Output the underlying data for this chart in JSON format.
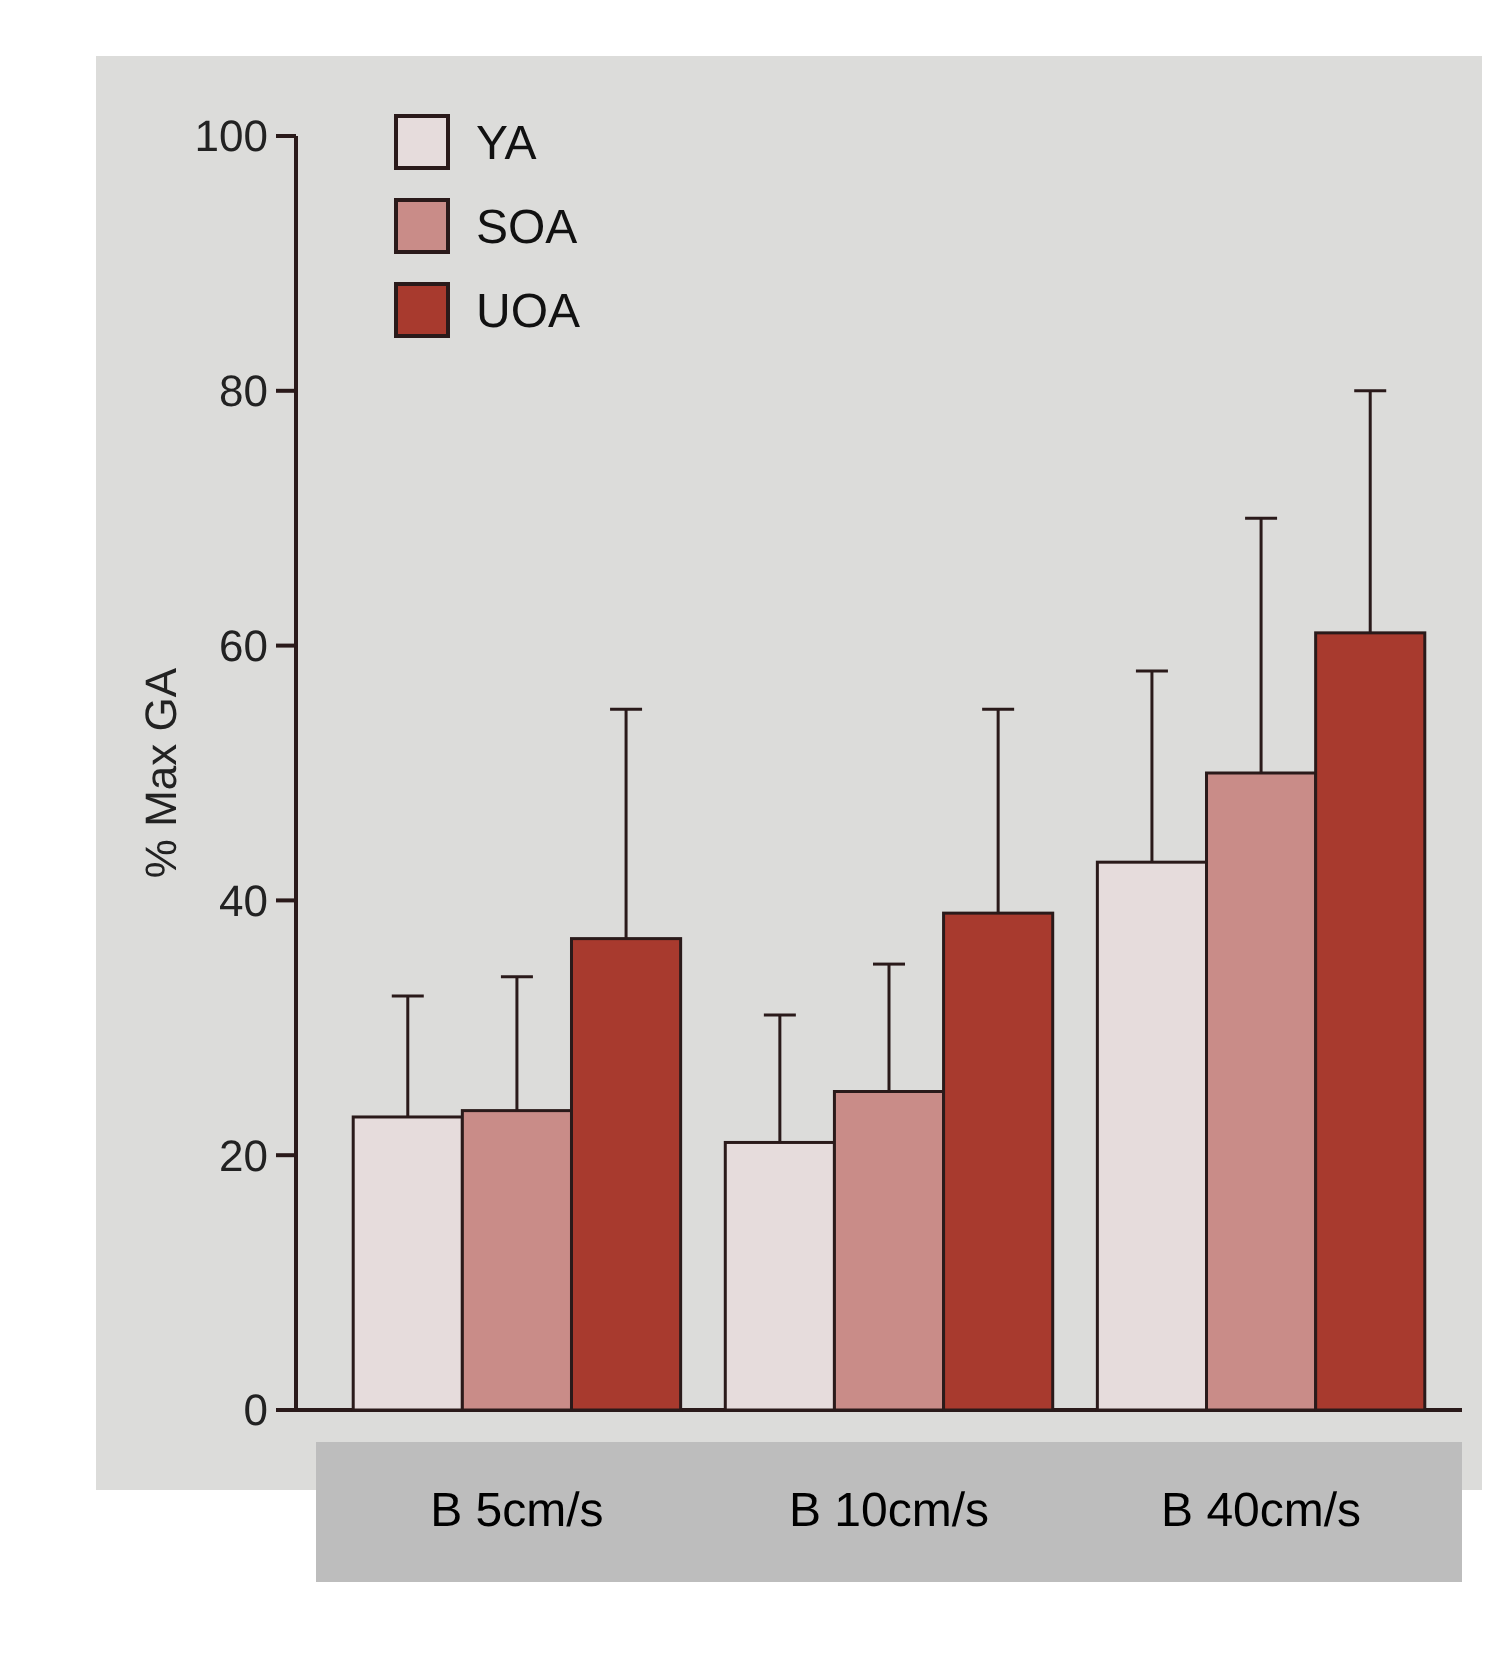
{
  "chart_data": {
    "type": "bar",
    "ylabel": "% Max GA",
    "categories": [
      "B 5cm/s",
      "B 10cm/s",
      "B 40cm/s"
    ],
    "series": [
      {
        "name": "YA",
        "color": "#e6dcdc",
        "values": [
          23,
          21,
          43
        ],
        "errors": [
          [
            23,
            32.5
          ],
          [
            21,
            31
          ],
          [
            43,
            58
          ]
        ]
      },
      {
        "name": "SOA",
        "color": "#c98c88",
        "values": [
          23.5,
          25,
          50
        ],
        "errors": [
          [
            23.5,
            34
          ],
          [
            25,
            35
          ],
          [
            50,
            70
          ]
        ]
      },
      {
        "name": "UOA",
        "color": "#a83a2e",
        "values": [
          37,
          39,
          61
        ],
        "errors": [
          [
            37,
            55
          ],
          [
            39,
            55
          ],
          [
            61,
            80
          ]
        ]
      }
    ],
    "ylim": [
      0,
      100
    ],
    "yticks": [
      0,
      20,
      40,
      60,
      80,
      100
    ],
    "legend": "top left",
    "grid": false
  }
}
